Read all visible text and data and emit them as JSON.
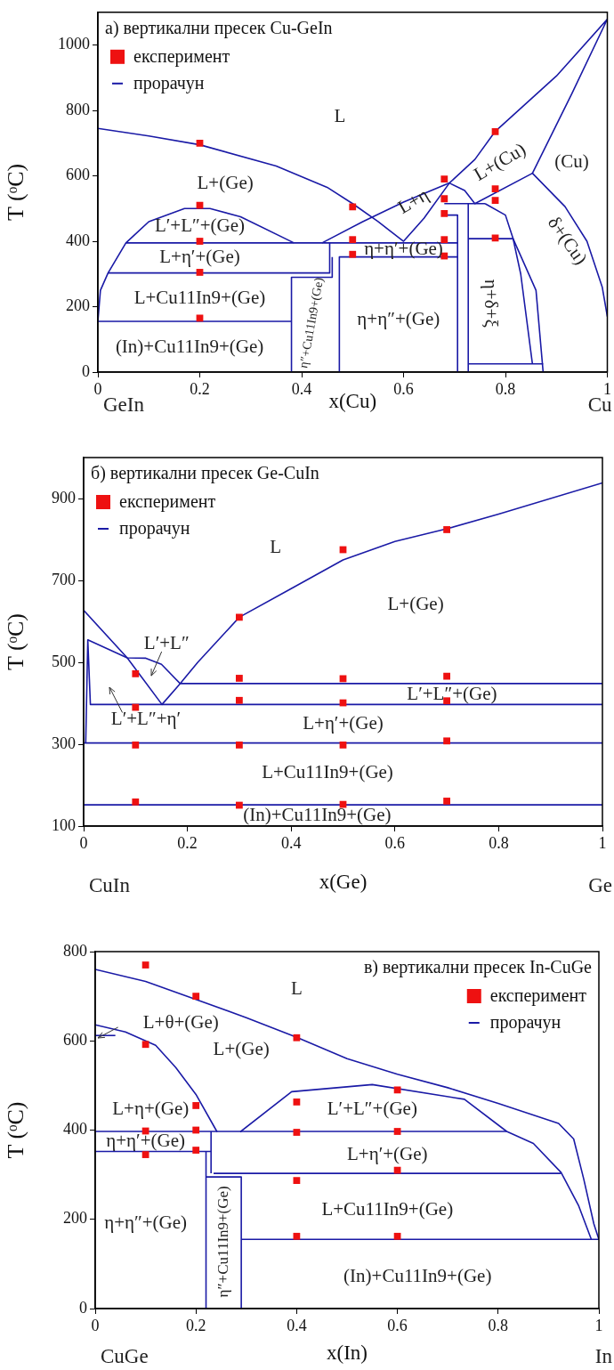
{
  "chart_data": [
    {
      "type": "line",
      "title": "а) вертикални пресек Cu-GeIn",
      "xlabel": "x(Cu)",
      "ylabel": "T (ᵒC)",
      "xlim": [
        0,
        1
      ],
      "xticks": [
        0,
        0.2,
        0.4,
        0.6,
        0.8,
        1
      ],
      "ylim": [
        0,
        1100
      ],
      "yticks": [
        0,
        200,
        400,
        600,
        800,
        1000
      ],
      "legend": "top left",
      "grid": false,
      "annotations": [
        "L",
        "L+(Ge)",
        "L′+L″+(Ge)",
        "L+η′+(Ge)",
        "L+Cu11In9+(Ge)",
        "(In)+Cu11In9+(Ge)",
        "η″+Cu11In9+(Ge)",
        "η+η″+(Ge)",
        "η+η′+(Ge)",
        "L+η",
        "L+(Cu)",
        "(Cu)",
        "δ+(Cu)",
        "η+δ+ξ",
        "GeIn",
        "Cu"
      ],
      "series": [
        {
          "type": "scatter",
          "marker": "square",
          "name": "експеримент",
          "color": "#ee1111",
          "x": [
            0.2,
            0.2,
            0.2,
            0.2,
            0.2,
            0.5,
            0.5,
            0.5,
            0.68,
            0.68,
            0.68,
            0.68,
            0.68,
            0.78,
            0.78,
            0.78,
            0.78
          ],
          "values": [
            700,
            510,
            400,
            305,
            165,
            505,
            405,
            360,
            590,
            530,
            485,
            405,
            355,
            735,
            560,
            525,
            410
          ]
        },
        {
          "name": "прорачун",
          "color": "#1a1aa6",
          "x": [
            0,
            0.1,
            0.2,
            0.35,
            0.45,
            0.5,
            0.55,
            0.6,
            0.64,
            0.69,
            0.74,
            0.78,
            0.9,
            1,
            0.93,
            0.853,
            0.917,
            0.96,
            0.99,
            1
          ],
          "values": [
            745,
            722,
            695,
            630,
            565,
            515,
            460,
            400,
            470,
            578,
            650,
            736,
            905,
            1079,
            850,
            608,
            506,
            400,
            260,
            170
          ]
        },
        {
          "color": "#1a1aa6",
          "x": [
            0.44,
            0.52,
            0.6,
            0.69,
            0.72,
            0.74,
            0.853
          ],
          "values": [
            395,
            460,
            520,
            578,
            555,
            515,
            608
          ]
        },
        {
          "color": "#1a1aa6",
          "x": [
            0.76,
            0.8,
            0.815,
            0.83,
            0.853
          ],
          "values": [
            515,
            480,
            408,
            300,
            25
          ]
        },
        {
          "color": "#1a1aa6",
          "x": [
            0.727,
            0.815,
            0.86,
            0.874
          ],
          "values": [
            408,
            408,
            250,
            0
          ]
        },
        {
          "color": "#1a1aa6",
          "x": [
            0.727,
            0.874
          ],
          "values": [
            25,
            25
          ]
        },
        {
          "color": "#1a1aa6",
          "x": [
            0.727,
            0.727
          ],
          "values": [
            0,
            515
          ]
        },
        {
          "color": "#1a1aa6",
          "x": [
            0.68,
            0.76
          ],
          "values": [
            515,
            515
          ]
        },
        {
          "color": "#1a1aa6",
          "x": [
            0.68,
            0.706,
            0.706
          ],
          "values": [
            480,
            480,
            0
          ]
        },
        {
          "color": "#1a1aa6",
          "x": [
            0.055,
            0.706
          ],
          "values": [
            395,
            395
          ]
        },
        {
          "color": "#1a1aa6",
          "x": [
            0.706,
            0.474,
            0.474
          ],
          "values": [
            352,
            352,
            0
          ]
        },
        {
          "color": "#1a1aa6",
          "x": [
            0.02,
            0.455,
            0.455
          ],
          "values": [
            303,
            303,
            395
          ]
        },
        {
          "color": "#1a1aa6",
          "x": [
            0.38,
            0.38,
            0.46,
            0.46
          ],
          "values": [
            0,
            290,
            290,
            352
          ]
        },
        {
          "color": "#1a1aa6",
          "x": [
            0.38,
            0,
            0.005,
            0.02,
            0.055,
            0.1,
            0.17,
            0.22,
            0.28,
            0.385
          ],
          "values": [
            155,
            155,
            250,
            303,
            395,
            460,
            500,
            500,
            475,
            395
          ]
        }
      ]
    },
    {
      "type": "line",
      "title": "б) вертикални пресек Ge-CuIn",
      "xlabel": "x(Ge)",
      "ylabel": "T (ᵒC)",
      "xlim": [
        0,
        1
      ],
      "xticks": [
        0,
        0.2,
        0.4,
        0.6,
        0.8,
        1
      ],
      "ylim": [
        100,
        1000
      ],
      "yticks": [
        100,
        300,
        500,
        700,
        900
      ],
      "legend": "top left",
      "grid": false,
      "annotations": [
        "L",
        "L+(Ge)",
        "L′+L″",
        "L′+L″+(Ge)",
        "L′+L″+η′",
        "L+η′+(Ge)",
        "L+Cu11In9+(Ge)",
        "(In)+Cu11In9+(Ge)",
        "CuIn",
        "Ge"
      ],
      "series": [
        {
          "type": "scatter",
          "marker": "square",
          "name": "експеримент",
          "color": "#ee1111",
          "x": [
            0.1,
            0.1,
            0.1,
            0.1,
            0.3,
            0.3,
            0.3,
            0.3,
            0.3,
            0.5,
            0.5,
            0.5,
            0.5,
            0.5,
            0.7,
            0.7,
            0.7,
            0.7,
            0.7
          ],
          "values": [
            472,
            390,
            298,
            159,
            610,
            461,
            407,
            298,
            151,
            775,
            460,
            401,
            298,
            153,
            824,
            466,
            406,
            308,
            161
          ]
        },
        {
          "name": "прорачун",
          "color": "#1a1aa6",
          "x": [
            0,
            0.084,
            0.151,
            0.186,
            0.22,
            0.3,
            0.4,
            0.5,
            0.6,
            0.7,
            0.8,
            1
          ],
          "values": [
            627,
            511,
            397,
            448,
            500,
            610,
            680,
            750,
            795,
            826,
            862,
            938
          ]
        },
        {
          "color": "#1a1aa6",
          "x": [
            0.008,
            0.084,
            0.12,
            0.15,
            0.186
          ],
          "values": [
            555,
            511,
            510,
            495,
            448
          ]
        },
        {
          "color": "#1a1aa6",
          "x": [
            0.004,
            0.008,
            0.013,
            1
          ],
          "values": [
            303,
            555,
            397,
            397
          ]
        },
        {
          "color": "#1a1aa6",
          "x": [
            0.186,
            1
          ],
          "values": [
            448,
            448
          ]
        },
        {
          "color": "#1a1aa6",
          "x": [
            0,
            1
          ],
          "values": [
            303,
            303
          ]
        },
        {
          "color": "#1a1aa6",
          "x": [
            0,
            1
          ],
          "values": [
            152,
            152
          ]
        }
      ]
    },
    {
      "type": "line",
      "title": "в) вертикални пресек In-CuGe",
      "xlabel": "x(In)",
      "ylabel": "T (ᵒC)",
      "xlim": [
        0,
        1
      ],
      "xticks": [
        0,
        0.2,
        0.4,
        0.6,
        0.8,
        1
      ],
      "ylim": [
        0,
        800
      ],
      "yticks": [
        0,
        200,
        400,
        600,
        800
      ],
      "legend": "top right",
      "grid": false,
      "annotations": [
        "L",
        "L+θ+(Ge)",
        "L+(Ge)",
        "L+η+(Ge)",
        "L′+L″+(Ge)",
        "η+η′+(Ge)",
        "L+η′+(Ge)",
        "L+Cu11In9+(Ge)",
        "η+η″+(Ge)",
        "η″+Cu11In9+(Ge)",
        "(In)+Cu11In9+(Ge)",
        "CuGe",
        "In"
      ],
      "series": [
        {
          "type": "scatter",
          "marker": "square",
          "name": "експеримент",
          "color": "#ee1111",
          "x": [
            0.1,
            0.1,
            0.1,
            0.1,
            0.2,
            0.2,
            0.2,
            0.2,
            0.4,
            0.4,
            0.4,
            0.4,
            0.4,
            0.6,
            0.6,
            0.6,
            0.6
          ],
          "values": [
            770,
            592,
            398,
            345,
            700,
            455,
            400,
            355,
            607,
            463,
            395,
            287,
            162,
            490,
            397,
            310,
            162
          ]
        },
        {
          "name": "прорачун",
          "color": "#1a1aa6",
          "x": [
            0,
            0.1,
            0.2,
            0.3,
            0.4,
            0.5,
            0.6,
            0.7,
            0.8,
            0.92,
            0.95,
            0.97,
            0.99,
            1
          ],
          "values": [
            760,
            733,
            693,
            652,
            608,
            560,
            525,
            495,
            460,
            415,
            380,
            290,
            190,
            155
          ]
        },
        {
          "color": "#1a1aa6",
          "x": [
            0,
            0.06,
            0.12,
            0.16,
            0.2,
            0.242
          ],
          "values": [
            636,
            620,
            590,
            540,
            480,
            396
          ]
        },
        {
          "color": "#1a1aa6",
          "x": [
            0.288,
            0.39,
            0.55,
            0.733,
            0.817,
            0.87,
            0.925,
            0.96,
            0.985
          ],
          "values": [
            396,
            486,
            502,
            469,
            397,
            370,
            305,
            230,
            155
          ]
        },
        {
          "color": "#1a1aa6",
          "x": [
            0,
            0.04
          ],
          "values": [
            612,
            612
          ]
        },
        {
          "color": "#1a1aa6",
          "x": [
            0,
            0.817
          ],
          "values": [
            397,
            397
          ]
        },
        {
          "color": "#1a1aa6",
          "x": [
            0,
            0.23
          ],
          "values": [
            352,
            352
          ]
        },
        {
          "color": "#1a1aa6",
          "x": [
            0.235,
            0.925
          ],
          "values": [
            303,
            303
          ]
        },
        {
          "color": "#1a1aa6",
          "x": [
            0.22,
            0.29,
            0.29
          ],
          "values": [
            295,
            295,
            0
          ]
        },
        {
          "color": "#1a1aa6",
          "x": [
            0.22,
            0.22
          ],
          "values": [
            0,
            352
          ]
        },
        {
          "color": "#1a1aa6",
          "x": [
            0.23,
            0.23
          ],
          "values": [
            303,
            397
          ]
        },
        {
          "color": "#1a1aa6",
          "x": [
            0.29,
            1
          ],
          "values": [
            155,
            155
          ]
        }
      ]
    }
  ]
}
